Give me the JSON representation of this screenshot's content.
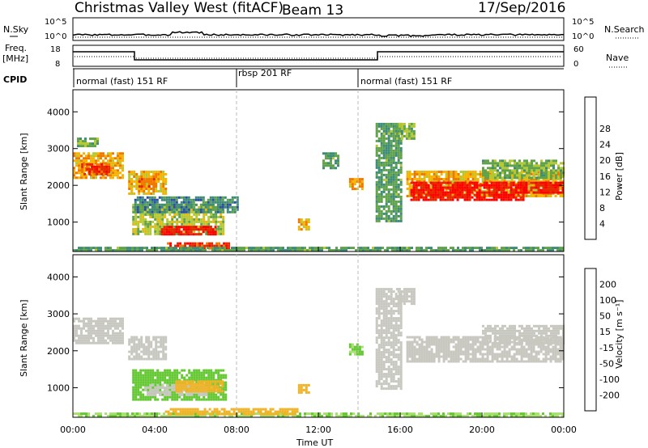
{
  "header": {
    "title": "Christmas Valley West (fitACF)",
    "beam": "Beam 13",
    "date": "17/Sep/2016"
  },
  "nsky_panel": {
    "left_label": "N.Sky",
    "right_label": "N.Search",
    "left_ticks": [
      "10^5",
      "10^0"
    ],
    "right_ticks": [
      "10^5",
      "10^0"
    ]
  },
  "freq_panel": {
    "left_label_line1": "Freq.",
    "left_label_line2": "[MHz]",
    "right_label": "Nave",
    "left_ticks": [
      "18",
      "8"
    ],
    "right_ticks": [
      "60",
      "0"
    ]
  },
  "cpid_panel": {
    "label": "CPID",
    "segments": [
      {
        "name": "normal (fast) 151 RF",
        "start_hour": 0
      },
      {
        "name": "rbsp 201 RF",
        "start_hour": 8
      },
      {
        "name": "normal (fast) 151 RF",
        "start_hour": 14
      }
    ]
  },
  "colors": {
    "white": "#ffffff",
    "scatter_gray": "#c8c8c0"
  },
  "chart_data": [
    {
      "type": "heatmap",
      "ylabel": "Slant Range [km]",
      "y_ticks": [
        1000,
        2000,
        3000,
        4000
      ],
      "ylim": [
        200,
        4600
      ],
      "xlim": [
        0,
        24
      ],
      "colorbar": {
        "label": "Power [dB]",
        "ticks": [
          "4",
          "8",
          "12",
          "16",
          "20",
          "24",
          "28"
        ],
        "colors": [
          "#0a14d2",
          "#2a4fa8",
          "#3e8c78",
          "#5fa24a",
          "#b4c832",
          "#f5b400",
          "#f07800",
          "#e62800",
          "#ff0000"
        ]
      },
      "regions": [
        {
          "t0": 0.0,
          "t1": 2.4,
          "r0": 2200,
          "r1": 2900,
          "level": 20
        },
        {
          "t0": 0.4,
          "t1": 1.8,
          "r0": 2300,
          "r1": 2600,
          "level": 26
        },
        {
          "t0": 0.2,
          "t1": 1.2,
          "r0": 3100,
          "r1": 3300,
          "level": 14
        },
        {
          "t0": 2.7,
          "t1": 4.5,
          "r0": 1800,
          "r1": 2400,
          "level": 20
        },
        {
          "t0": 3.2,
          "t1": 4.0,
          "r0": 2000,
          "r1": 2200,
          "level": 24
        },
        {
          "t0": 2.9,
          "t1": 7.3,
          "r0": 700,
          "r1": 1500,
          "level": 16
        },
        {
          "t0": 4.3,
          "t1": 7.0,
          "r0": 650,
          "r1": 900,
          "level": 28
        },
        {
          "t0": 3.0,
          "t1": 8.0,
          "r0": 1300,
          "r1": 1700,
          "level": 10
        },
        {
          "t0": 4.6,
          "t1": 7.6,
          "r0": 300,
          "r1": 450,
          "level": 26
        },
        {
          "t0": 0.0,
          "t1": 24.0,
          "r0": 220,
          "r1": 330,
          "level": 12
        },
        {
          "t0": 11.0,
          "t1": 11.5,
          "r0": 800,
          "r1": 1100,
          "level": 20
        },
        {
          "t0": 12.2,
          "t1": 13.0,
          "r0": 2500,
          "r1": 2900,
          "level": 12
        },
        {
          "t0": 13.5,
          "t1": 14.2,
          "r0": 1900,
          "r1": 2200,
          "level": 20
        },
        {
          "t0": 14.8,
          "t1": 16.0,
          "r0": 1000,
          "r1": 3700,
          "level": 12
        },
        {
          "t0": 15.8,
          "t1": 16.7,
          "r0": 3300,
          "r1": 3700,
          "level": 14
        },
        {
          "t0": 16.3,
          "t1": 24.0,
          "r0": 1700,
          "r1": 2400,
          "level": 20
        },
        {
          "t0": 16.5,
          "t1": 22.0,
          "r0": 1600,
          "r1": 2100,
          "level": 28
        },
        {
          "t0": 22.0,
          "t1": 24.0,
          "r0": 1800,
          "r1": 2100,
          "level": 28
        },
        {
          "t0": 20.0,
          "t1": 24.0,
          "r0": 2200,
          "r1": 2700,
          "level": 14
        }
      ]
    },
    {
      "type": "heatmap",
      "ylabel": "Slant Range [km]",
      "xlabel": "Time UT",
      "x_ticks": [
        "00:00",
        "04:00",
        "08:00",
        "12:00",
        "16:00",
        "20:00",
        "00:00"
      ],
      "y_ticks": [
        1000,
        2000,
        3000,
        4000
      ],
      "ylim": [
        200,
        4600
      ],
      "xlim": [
        0,
        24
      ],
      "colorbar": {
        "label": "Velocity [m s⁻¹]",
        "ticks": [
          "200",
          "100",
          "50",
          "15",
          "-15",
          "-50",
          "-100",
          "-200"
        ],
        "colors": [
          "#1428c8",
          "#2a4fa8",
          "#3e8c5a",
          "#64c832",
          "#a8e070",
          "#c8c8c0",
          "#f0b428",
          "#f07800",
          "#e62800"
        ]
      },
      "regions": [
        {
          "t0": 0.0,
          "t1": 2.4,
          "r0": 2200,
          "r1": 2900,
          "level": 0
        },
        {
          "t0": 2.7,
          "t1": 4.5,
          "r0": 1800,
          "r1": 2400,
          "level": 0
        },
        {
          "t0": 2.9,
          "t1": 7.5,
          "r0": 700,
          "r1": 1500,
          "level": 50
        },
        {
          "t0": 3.5,
          "t1": 6.5,
          "r0": 800,
          "r1": 1100,
          "level": 0
        },
        {
          "t0": 5.0,
          "t1": 7.3,
          "r0": 900,
          "r1": 1200,
          "level": -40
        },
        {
          "t0": 0.0,
          "t1": 24.0,
          "r0": 220,
          "r1": 330,
          "level": 30
        },
        {
          "t0": 4.5,
          "t1": 11.0,
          "r0": 300,
          "r1": 450,
          "level": -40
        },
        {
          "t0": 11.0,
          "t1": 11.5,
          "r0": 850,
          "r1": 1100,
          "level": -40
        },
        {
          "t0": 13.5,
          "t1": 14.2,
          "r0": 1900,
          "r1": 2200,
          "level": 40
        },
        {
          "t0": 14.8,
          "t1": 16.0,
          "r0": 1000,
          "r1": 3700,
          "level": 0
        },
        {
          "t0": 15.8,
          "t1": 16.7,
          "r0": 3300,
          "r1": 3700,
          "level": 0
        },
        {
          "t0": 16.3,
          "t1": 24.0,
          "r0": 1700,
          "r1": 2400,
          "level": 0
        },
        {
          "t0": 20.0,
          "t1": 24.0,
          "r0": 2200,
          "r1": 2700,
          "level": 0
        }
      ]
    }
  ]
}
